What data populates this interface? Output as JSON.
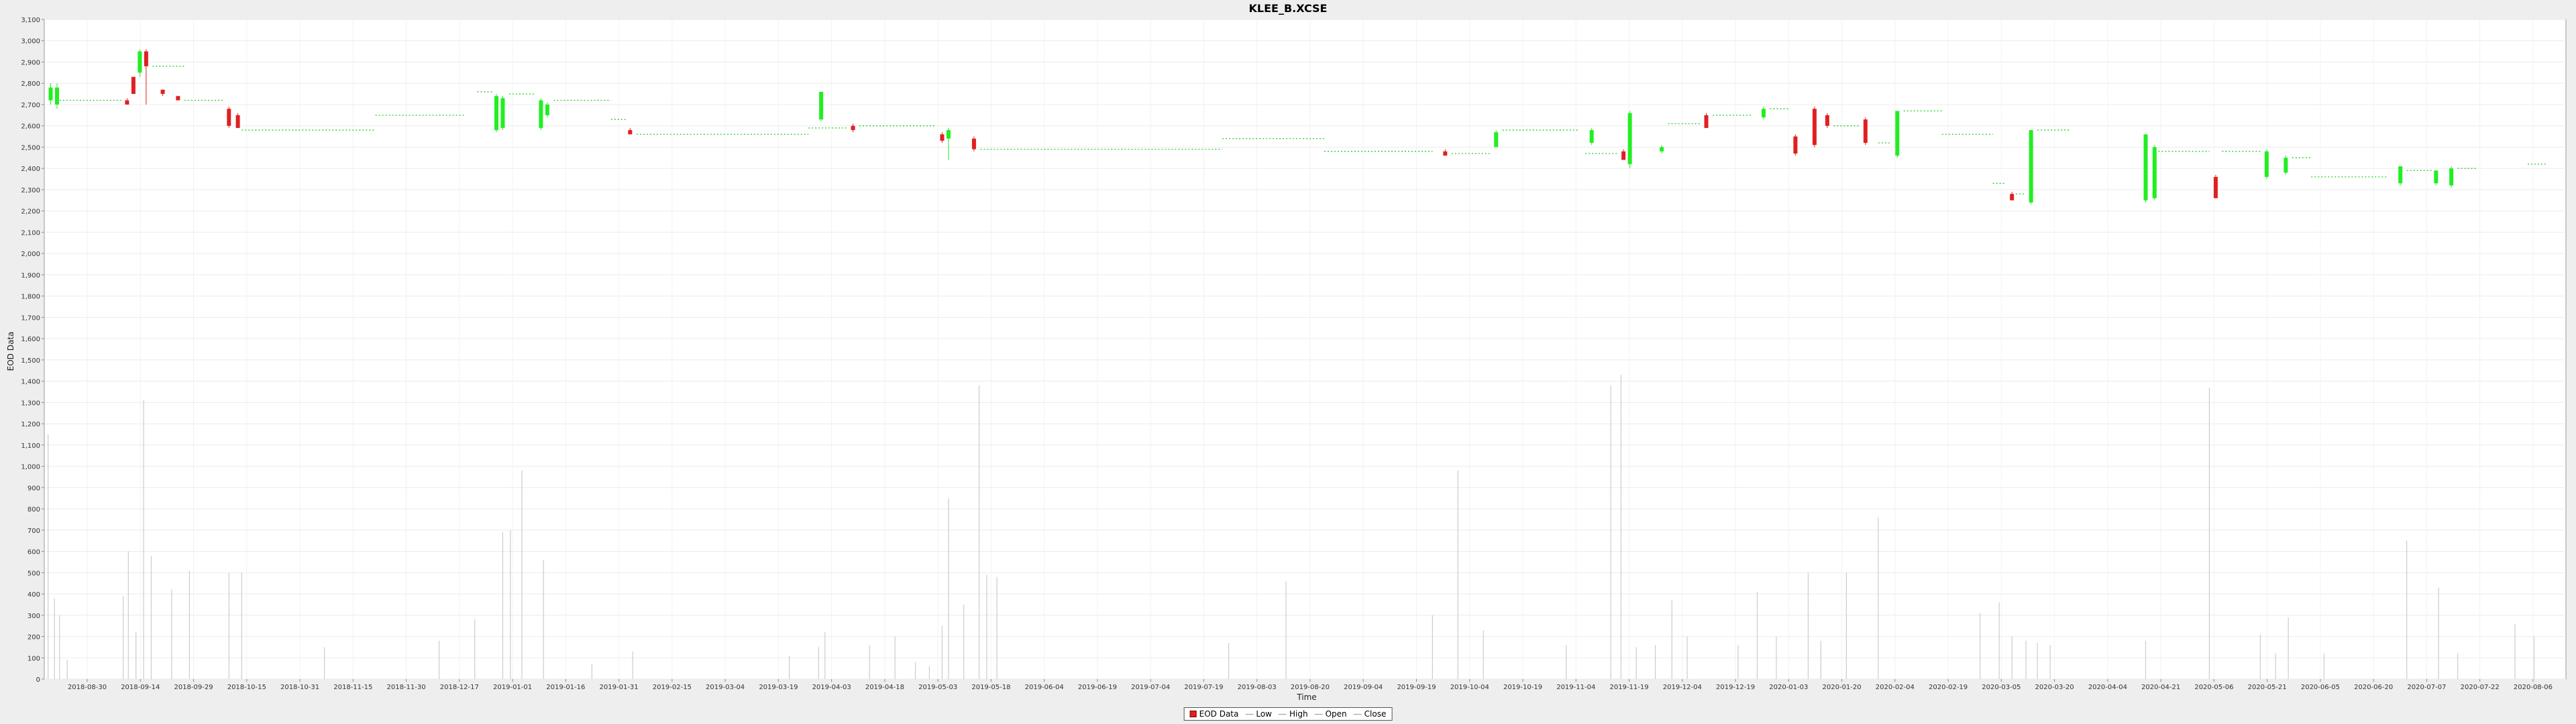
{
  "chart_data": {
    "type": "candlestick",
    "title": "KLEE_B.XCSE",
    "xlabel": "Time",
    "ylabel": "EOD Data",
    "ylim": [
      0,
      3100
    ],
    "ytick_step": 100,
    "y_ticks": [
      "0",
      "100",
      "200",
      "300",
      "400",
      "500",
      "600",
      "700",
      "800",
      "900",
      "1,000",
      "1,100",
      "1,200",
      "1,300",
      "1,400",
      "1,500",
      "1,600",
      "1,700",
      "1,800",
      "1,900",
      "2,000",
      "2,100",
      "2,200",
      "2,300",
      "2,400",
      "2,500",
      "2,600",
      "2,700",
      "2,800",
      "2,900",
      "3,000",
      "3,100"
    ],
    "x_ticks": [
      "2018-08-30",
      "2018-09-14",
      "2018-09-29",
      "2018-10-15",
      "2018-10-31",
      "2018-11-15",
      "2018-11-30",
      "2018-12-17",
      "2019-01-01",
      "2019-01-16",
      "2019-01-31",
      "2019-02-15",
      "2019-03-04",
      "2019-03-19",
      "2019-04-03",
      "2019-04-18",
      "2019-05-03",
      "2019-05-18",
      "2019-06-04",
      "2019-06-19",
      "2019-07-04",
      "2019-07-19",
      "2019-08-03",
      "2019-08-20",
      "2019-09-04",
      "2019-09-19",
      "2019-10-04",
      "2019-10-19",
      "2019-11-04",
      "2019-11-19",
      "2019-12-04",
      "2019-12-19",
      "2020-01-03",
      "2020-01-20",
      "2020-02-04",
      "2020-02-19",
      "2020-03-05",
      "2020-03-20",
      "2020-04-04",
      "2020-04-21",
      "2020-05-06",
      "2020-05-21",
      "2020-06-05",
      "2020-06-20",
      "2020-07-07",
      "2020-07-22",
      "2020-08-06"
    ],
    "grid": true,
    "legend_position": "bottom",
    "legend": [
      {
        "label": "EOD Data",
        "kind": "box",
        "color": "#e02020"
      },
      {
        "label": "Low",
        "kind": "line",
        "color": "#aaaaaa"
      },
      {
        "label": "High",
        "kind": "line",
        "color": "#aaaaaa"
      },
      {
        "label": "Open",
        "kind": "line",
        "color": "#aaaaaa"
      },
      {
        "label": "Close",
        "kind": "line",
        "color": "#aaaaaa"
      }
    ],
    "colors": {
      "up": "#22ee22",
      "down": "#e02020",
      "volume": "#cccccc",
      "flat": "#22cc22"
    },
    "candles": [
      {
        "x": 5,
        "open": 2720,
        "close": 2780,
        "high": 2800,
        "low": 2700
      },
      {
        "x": 10,
        "open": 2700,
        "close": 2780,
        "high": 2800,
        "low": 2680
      },
      {
        "x": 65,
        "open": 2720,
        "close": 2700,
        "high": 2730,
        "low": 2700
      },
      {
        "x": 70,
        "open": 2830,
        "close": 2750,
        "high": 2830,
        "low": 2750
      },
      {
        "x": 75,
        "open": 2850,
        "close": 2950,
        "high": 2960,
        "low": 2830
      },
      {
        "x": 80,
        "open": 2950,
        "close": 2880,
        "high": 2960,
        "low": 2700
      },
      {
        "x": 93,
        "open": 2770,
        "close": 2750,
        "high": 2770,
        "low": 2740
      },
      {
        "x": 105,
        "open": 2740,
        "close": 2720,
        "high": 2740,
        "low": 2720
      },
      {
        "x": 145,
        "open": 2680,
        "close": 2600,
        "high": 2690,
        "low": 2590
      },
      {
        "x": 152,
        "open": 2650,
        "close": 2590,
        "high": 2660,
        "low": 2590
      },
      {
        "x": 355,
        "open": 2580,
        "close": 2740,
        "high": 2750,
        "low": 2570
      },
      {
        "x": 360,
        "open": 2590,
        "close": 2730,
        "high": 2740,
        "low": 2580
      },
      {
        "x": 390,
        "open": 2590,
        "close": 2720,
        "high": 2730,
        "low": 2580
      },
      {
        "x": 395,
        "open": 2650,
        "close": 2700,
        "high": 2710,
        "low": 2640
      },
      {
        "x": 460,
        "open": 2580,
        "close": 2560,
        "high": 2590,
        "low": 2560
      },
      {
        "x": 610,
        "open": 2630,
        "close": 2760,
        "high": 2760,
        "low": 2620
      },
      {
        "x": 635,
        "open": 2600,
        "close": 2580,
        "high": 2610,
        "low": 2570
      },
      {
        "x": 705,
        "open": 2560,
        "close": 2530,
        "high": 2570,
        "low": 2520
      },
      {
        "x": 710,
        "open": 2540,
        "close": 2580,
        "high": 2590,
        "low": 2440
      },
      {
        "x": 730,
        "open": 2540,
        "close": 2490,
        "high": 2550,
        "low": 2480
      },
      {
        "x": 1100,
        "open": 2480,
        "close": 2460,
        "high": 2490,
        "low": 2460
      },
      {
        "x": 1140,
        "open": 2500,
        "close": 2570,
        "high": 2580,
        "low": 2500
      },
      {
        "x": 1215,
        "open": 2520,
        "close": 2580,
        "high": 2590,
        "low": 2510
      },
      {
        "x": 1240,
        "open": 2480,
        "close": 2440,
        "high": 2490,
        "low": 2440
      },
      {
        "x": 1245,
        "open": 2420,
        "close": 2660,
        "high": 2670,
        "low": 2400
      },
      {
        "x": 1270,
        "open": 2480,
        "close": 2500,
        "high": 2510,
        "low": 2470
      },
      {
        "x": 1305,
        "open": 2650,
        "close": 2590,
        "high": 2660,
        "low": 2590
      },
      {
        "x": 1350,
        "open": 2640,
        "close": 2680,
        "high": 2690,
        "low": 2630
      },
      {
        "x": 1375,
        "open": 2550,
        "close": 2470,
        "high": 2560,
        "low": 2460
      },
      {
        "x": 1390,
        "open": 2680,
        "close": 2510,
        "high": 2690,
        "low": 2500
      },
      {
        "x": 1400,
        "open": 2650,
        "close": 2600,
        "high": 2660,
        "low": 2590
      },
      {
        "x": 1430,
        "open": 2630,
        "close": 2520,
        "high": 2640,
        "low": 2510
      },
      {
        "x": 1455,
        "open": 2460,
        "close": 2670,
        "high": 2670,
        "low": 2450
      },
      {
        "x": 1545,
        "open": 2280,
        "close": 2250,
        "high": 2290,
        "low": 2250
      },
      {
        "x": 1560,
        "open": 2240,
        "close": 2580,
        "high": 2580,
        "low": 2230
      },
      {
        "x": 1650,
        "open": 2250,
        "close": 2560,
        "high": 2560,
        "low": 2240
      },
      {
        "x": 1657,
        "open": 2260,
        "close": 2500,
        "high": 2510,
        "low": 2250
      },
      {
        "x": 1705,
        "open": 2360,
        "close": 2260,
        "high": 2370,
        "low": 2260
      },
      {
        "x": 1745,
        "open": 2360,
        "close": 2480,
        "high": 2490,
        "low": 2350
      },
      {
        "x": 1760,
        "open": 2380,
        "close": 2450,
        "high": 2460,
        "low": 2370
      },
      {
        "x": 1850,
        "open": 2330,
        "close": 2410,
        "high": 2410,
        "low": 2320
      },
      {
        "x": 1878,
        "open": 2330,
        "close": 2390,
        "high": 2390,
        "low": 2320
      },
      {
        "x": 1890,
        "open": 2320,
        "close": 2400,
        "high": 2410,
        "low": 2310
      }
    ],
    "close_levels": [
      {
        "from": 12,
        "to": 62,
        "value": 2720
      },
      {
        "from": 85,
        "to": 110,
        "value": 2880
      },
      {
        "from": 110,
        "to": 140,
        "value": 2720
      },
      {
        "from": 155,
        "to": 260,
        "value": 2580
      },
      {
        "from": 260,
        "to": 330,
        "value": 2650
      },
      {
        "from": 340,
        "to": 352,
        "value": 2760
      },
      {
        "from": 365,
        "to": 385,
        "value": 2750
      },
      {
        "from": 400,
        "to": 445,
        "value": 2720
      },
      {
        "from": 445,
        "to": 458,
        "value": 2630
      },
      {
        "from": 465,
        "to": 600,
        "value": 2560
      },
      {
        "from": 600,
        "to": 630,
        "value": 2590
      },
      {
        "from": 640,
        "to": 700,
        "value": 2600
      },
      {
        "from": 735,
        "to": 925,
        "value": 2490
      },
      {
        "from": 925,
        "to": 1005,
        "value": 2540
      },
      {
        "from": 1005,
        "to": 1090,
        "value": 2480
      },
      {
        "from": 1105,
        "to": 1135,
        "value": 2470
      },
      {
        "from": 1145,
        "to": 1205,
        "value": 2580
      },
      {
        "from": 1210,
        "to": 1235,
        "value": 2470
      },
      {
        "from": 1275,
        "to": 1300,
        "value": 2610
      },
      {
        "from": 1310,
        "to": 1340,
        "value": 2650
      },
      {
        "from": 1355,
        "to": 1370,
        "value": 2680
      },
      {
        "from": 1405,
        "to": 1425,
        "value": 2600
      },
      {
        "from": 1440,
        "to": 1450,
        "value": 2520
      },
      {
        "from": 1460,
        "to": 1490,
        "value": 2670
      },
      {
        "from": 1490,
        "to": 1530,
        "value": 2560
      },
      {
        "from": 1530,
        "to": 1540,
        "value": 2330
      },
      {
        "from": 1548,
        "to": 1555,
        "value": 2280
      },
      {
        "from": 1565,
        "to": 1590,
        "value": 2580
      },
      {
        "from": 1660,
        "to": 1700,
        "value": 2480
      },
      {
        "from": 1710,
        "to": 1740,
        "value": 2480
      },
      {
        "from": 1765,
        "to": 1780,
        "value": 2450
      },
      {
        "from": 1780,
        "to": 1840,
        "value": 2360
      },
      {
        "from": 1855,
        "to": 1875,
        "value": 2390
      },
      {
        "from": 1895,
        "to": 1910,
        "value": 2400
      },
      {
        "from": 1950,
        "to": 1965,
        "value": 2420
      }
    ],
    "volume": [
      {
        "x": 3,
        "v": 1150
      },
      {
        "x": 8,
        "v": 380
      },
      {
        "x": 12,
        "v": 300
      },
      {
        "x": 18,
        "v": 90
      },
      {
        "x": 62,
        "v": 390
      },
      {
        "x": 66,
        "v": 600
      },
      {
        "x": 72,
        "v": 220
      },
      {
        "x": 78,
        "v": 1310
      },
      {
        "x": 84,
        "v": 580
      },
      {
        "x": 100,
        "v": 420
      },
      {
        "x": 114,
        "v": 510
      },
      {
        "x": 145,
        "v": 500
      },
      {
        "x": 155,
        "v": 500
      },
      {
        "x": 220,
        "v": 150
      },
      {
        "x": 310,
        "v": 180
      },
      {
        "x": 338,
        "v": 280
      },
      {
        "x": 360,
        "v": 690
      },
      {
        "x": 366,
        "v": 700
      },
      {
        "x": 375,
        "v": 980
      },
      {
        "x": 392,
        "v": 560
      },
      {
        "x": 430,
        "v": 70
      },
      {
        "x": 462,
        "v": 130
      },
      {
        "x": 585,
        "v": 110
      },
      {
        "x": 608,
        "v": 150
      },
      {
        "x": 613,
        "v": 220
      },
      {
        "x": 648,
        "v": 160
      },
      {
        "x": 668,
        "v": 200
      },
      {
        "x": 684,
        "v": 80
      },
      {
        "x": 695,
        "v": 60
      },
      {
        "x": 705,
        "v": 250
      },
      {
        "x": 710,
        "v": 850
      },
      {
        "x": 722,
        "v": 350
      },
      {
        "x": 734,
        "v": 1380
      },
      {
        "x": 740,
        "v": 490
      },
      {
        "x": 748,
        "v": 480
      },
      {
        "x": 930,
        "v": 170
      },
      {
        "x": 975,
        "v": 460
      },
      {
        "x": 1090,
        "v": 300
      },
      {
        "x": 1110,
        "v": 980
      },
      {
        "x": 1130,
        "v": 230
      },
      {
        "x": 1195,
        "v": 160
      },
      {
        "x": 1230,
        "v": 1380
      },
      {
        "x": 1238,
        "v": 1430
      },
      {
        "x": 1250,
        "v": 150
      },
      {
        "x": 1265,
        "v": 160
      },
      {
        "x": 1278,
        "v": 370
      },
      {
        "x": 1290,
        "v": 200
      },
      {
        "x": 1330,
        "v": 160
      },
      {
        "x": 1345,
        "v": 410
      },
      {
        "x": 1360,
        "v": 200
      },
      {
        "x": 1385,
        "v": 500
      },
      {
        "x": 1395,
        "v": 180
      },
      {
        "x": 1415,
        "v": 500
      },
      {
        "x": 1440,
        "v": 760
      },
      {
        "x": 1520,
        "v": 310
      },
      {
        "x": 1535,
        "v": 360
      },
      {
        "x": 1545,
        "v": 200
      },
      {
        "x": 1556,
        "v": 180
      },
      {
        "x": 1565,
        "v": 170
      },
      {
        "x": 1575,
        "v": 160
      },
      {
        "x": 1650,
        "v": 180
      },
      {
        "x": 1700,
        "v": 1370
      },
      {
        "x": 1740,
        "v": 210
      },
      {
        "x": 1752,
        "v": 120
      },
      {
        "x": 1762,
        "v": 290
      },
      {
        "x": 1790,
        "v": 120
      },
      {
        "x": 1855,
        "v": 650
      },
      {
        "x": 1880,
        "v": 430
      },
      {
        "x": 1895,
        "v": 120
      },
      {
        "x": 1940,
        "v": 260
      },
      {
        "x": 1955,
        "v": 200
      }
    ]
  }
}
